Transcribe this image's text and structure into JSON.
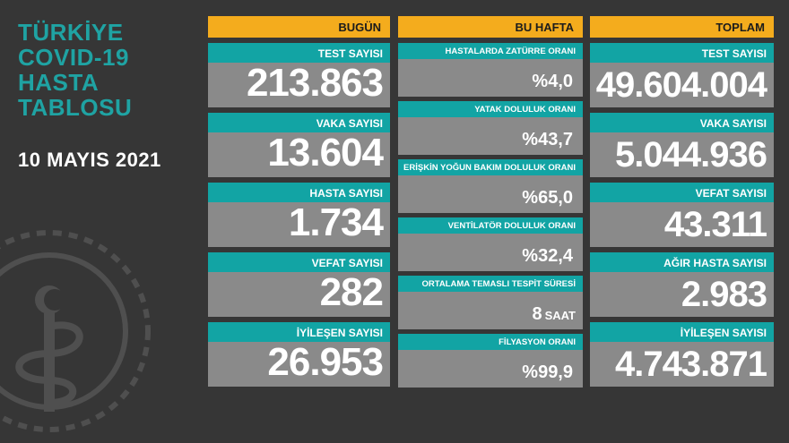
{
  "title_lines": [
    "TÜRKİYE",
    "COVID-19",
    "HASTA",
    "TABLOSU"
  ],
  "date": "10 MAYIS 2021",
  "colors": {
    "accent": "#f4ac1d",
    "teal": "#12a4a4",
    "card": "#8a8a8a",
    "background": "#363636"
  },
  "bugun": {
    "header": "BUGÜN",
    "cards": [
      {
        "label": "TEST SAYISI",
        "value": "213.863"
      },
      {
        "label": "VAKA SAYISI",
        "value": "13.604"
      },
      {
        "label": "HASTA SAYISI",
        "value": "1.734"
      },
      {
        "label": "VEFAT SAYISI",
        "value": "282"
      },
      {
        "label": "İYİLEŞEN SAYISI",
        "value": "26.953"
      }
    ]
  },
  "bu_hafta": {
    "header": "BU HAFTA",
    "cards": [
      {
        "label": "HASTALARDA ZATÜRRE ORANI",
        "value": "%4,0",
        "unit": ""
      },
      {
        "label": "YATAK DOLULUK ORANI",
        "value": "%43,7",
        "unit": ""
      },
      {
        "label": "ERİŞKİN YOĞUN BAKIM DOLULUK ORANI",
        "value": "%65,0",
        "unit": ""
      },
      {
        "label": "VENTİLATÖR DOLULUK ORANI",
        "value": "%32,4",
        "unit": ""
      },
      {
        "label": "ORTALAMA TEMASLI TESPİT SÜRESİ",
        "value": "8",
        "unit": "SAAT"
      },
      {
        "label": "FİLYASYON ORANI",
        "value": "%99,9",
        "unit": ""
      }
    ]
  },
  "toplam": {
    "header": "TOPLAM",
    "cards": [
      {
        "label": "TEST SAYISI",
        "value": "49.604.004"
      },
      {
        "label": "VAKA SAYISI",
        "value": "5.044.936"
      },
      {
        "label": "VEFAT SAYISI",
        "value": "43.311"
      },
      {
        "label": "AĞIR HASTA SAYISI",
        "value": "2.983"
      },
      {
        "label": "İYİLEŞEN SAYISI",
        "value": "4.743.871"
      }
    ]
  }
}
